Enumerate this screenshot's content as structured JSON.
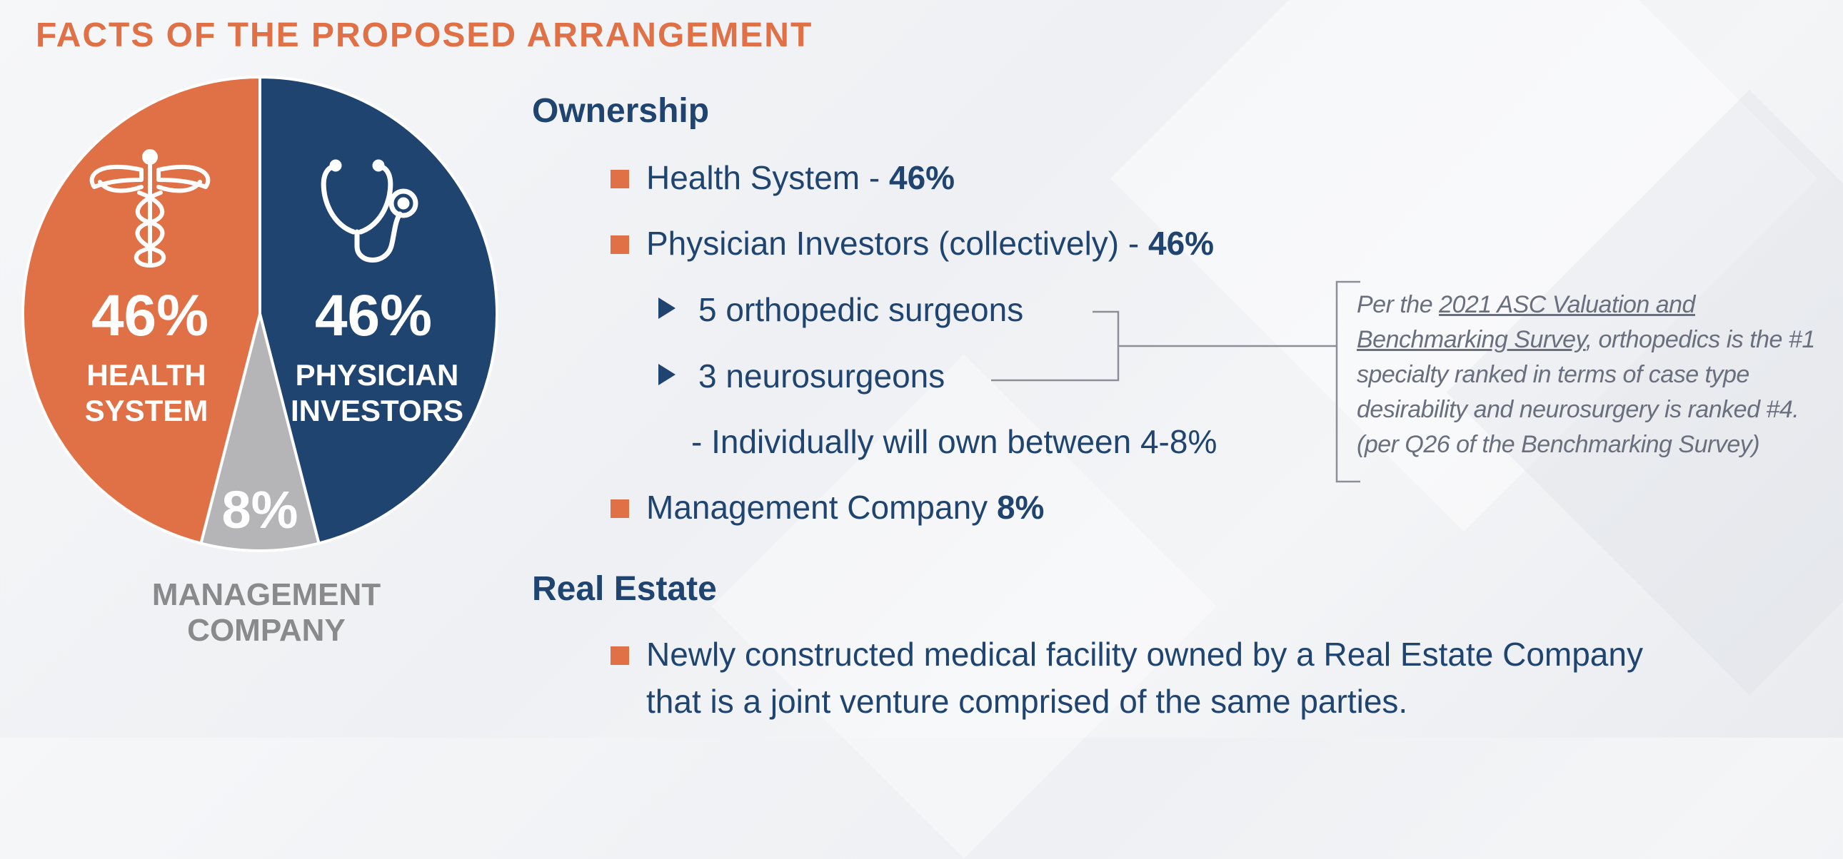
{
  "title": "FACTS OF THE PROPOSED ARRANGEMENT",
  "colors": {
    "orange": "#e07046",
    "navy": "#1f4470",
    "gray": "#b5b5b7"
  },
  "chart_data": {
    "type": "pie",
    "slices": [
      {
        "label": "HEALTH SYSTEM",
        "label_lines": [
          "HEALTH",
          "SYSTEM"
        ],
        "value": 46,
        "display": "46%",
        "color": "#e07046",
        "icon": "caduceus-icon"
      },
      {
        "label": "PHYSICIAN INVESTORS",
        "label_lines": [
          "PHYSICIAN",
          "INVESTORS"
        ],
        "value": 46,
        "display": "46%",
        "color": "#1f4470",
        "icon": "stethoscope-icon"
      },
      {
        "label": "MANAGEMENT COMPANY",
        "label_lines": [
          "MANAGEMENT",
          "COMPANY"
        ],
        "value": 8,
        "display": "8%",
        "color": "#b5b5b7",
        "icon": ""
      }
    ]
  },
  "ownership": {
    "heading": "Ownership",
    "items": [
      {
        "text": "Health System - ",
        "value": "46%"
      },
      {
        "text": "Physician Investors (collectively) - ",
        "value": "46%"
      }
    ],
    "sub_items": [
      "5 orthopedic surgeons",
      "3 neurosurgeons"
    ],
    "detail": "- Individually will own between 4-8%",
    "last_item": {
      "text": "Management Company ",
      "value": "8%"
    }
  },
  "note": {
    "prefix": "Per the ",
    "link1": "2021 ASC Valuation and",
    "link2": "Benchmarking Survey",
    "rest": ", orthopedics is the #1 specialty ranked in terms of case type desirability and neurosurgery is ranked #4. (per Q26 of the Benchmarking Survey)"
  },
  "real_estate": {
    "heading": "Real Estate",
    "lines": [
      "Newly constructed medical facility owned by a Real Estate Company",
      "that is a joint venture comprised of the same parties."
    ]
  }
}
